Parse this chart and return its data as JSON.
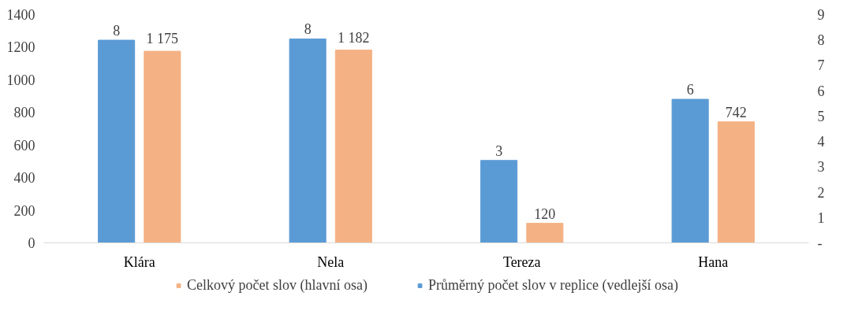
{
  "chart_data": {
    "type": "bar",
    "categories": [
      "Klára",
      "Nela",
      "Tereza",
      "Hana"
    ],
    "series": [
      {
        "name": "Průměrný počet slov v replice (vedlejší osa)",
        "color": "#5b9bd5",
        "axis": "y2",
        "values": [
          7.99,
          8.04,
          3.25,
          5.66
        ],
        "value_labels": [
          "8",
          "8",
          "3",
          "6"
        ]
      },
      {
        "name": "Celkový počet slov (hlavní osa)",
        "color": "#f4b183",
        "values": [
          1175,
          1182,
          120,
          742
        ],
        "value_labels": [
          "1 175",
          "1 182",
          "120",
          "742"
        ]
      }
    ],
    "ylim": [
      0,
      1400
    ],
    "yticks": [
      0,
      200,
      400,
      600,
      800,
      1000,
      1200,
      1400
    ],
    "y2lim": [
      0,
      9
    ],
    "y2ticks": [
      {
        "value": 0,
        "label": "-"
      },
      1,
      2,
      3,
      4,
      5,
      6,
      7,
      8,
      9
    ],
    "grid": false,
    "legend": "bottom"
  }
}
